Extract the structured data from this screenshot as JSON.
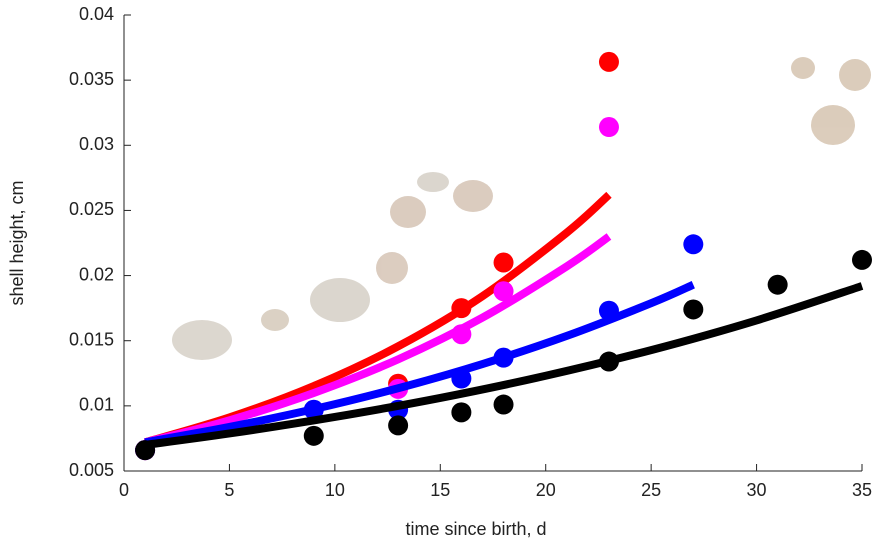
{
  "chart_data": {
    "type": "scatter",
    "x_label": "time since birth, d",
    "y_label": "shell height, cm",
    "xlim": [
      0,
      35
    ],
    "xticks": [
      0,
      5,
      10,
      15,
      20,
      25,
      30,
      35
    ],
    "ylim": [
      0.005,
      0.04
    ],
    "yticks": [
      0.005,
      0.01,
      0.015,
      0.02,
      0.025,
      0.03,
      0.035,
      0.04
    ],
    "grid": false,
    "series": [
      {
        "color": "#ff0000",
        "x": [
          1,
          13,
          16,
          18,
          23
        ],
        "values": [
          0.0066,
          0.0117,
          0.0175,
          0.021,
          0.0364
        ],
        "fit_x": [
          1,
          5,
          9,
          13,
          17,
          21,
          23
        ],
        "fit_values": [
          0.0072,
          0.00911,
          0.01152,
          0.01457,
          0.01842,
          0.0233,
          0.0262
        ]
      },
      {
        "color": "#ff00ff",
        "x": [
          1,
          13,
          16,
          18,
          23
        ],
        "values": [
          0.0066,
          0.0113,
          0.0155,
          0.0188,
          0.0314
        ],
        "fit_x": [
          1,
          5,
          9,
          13,
          17,
          21,
          23
        ],
        "fit_values": [
          0.0072,
          0.00889,
          0.01099,
          0.01357,
          0.01677,
          0.02071,
          0.023
        ]
      },
      {
        "color": "#0000ff",
        "x": [
          1,
          9,
          13,
          16,
          18,
          23,
          27
        ],
        "values": [
          0.0066,
          0.0097,
          0.0097,
          0.0121,
          0.0137,
          0.0173,
          0.0224
        ],
        "fit_x": [
          1,
          5,
          9,
          13,
          17,
          21,
          25,
          27
        ],
        "fit_values": [
          0.0072,
          0.00838,
          0.00975,
          0.01135,
          0.01321,
          0.01537,
          0.01788,
          0.0193
        ]
      },
      {
        "color": "#000000",
        "x": [
          1,
          9,
          13,
          16,
          18,
          23,
          27,
          31,
          35
        ],
        "values": [
          0.0066,
          0.0077,
          0.0085,
          0.0095,
          0.0101,
          0.0134,
          0.0174,
          0.0193,
          0.0212
        ],
        "fit_x": [
          1,
          5,
          10,
          15,
          20,
          25,
          30,
          35
        ],
        "fit_values": [
          0.007,
          0.00788,
          0.00915,
          0.01061,
          0.01231,
          0.01428,
          0.01656,
          0.0192
        ]
      }
    ]
  }
}
